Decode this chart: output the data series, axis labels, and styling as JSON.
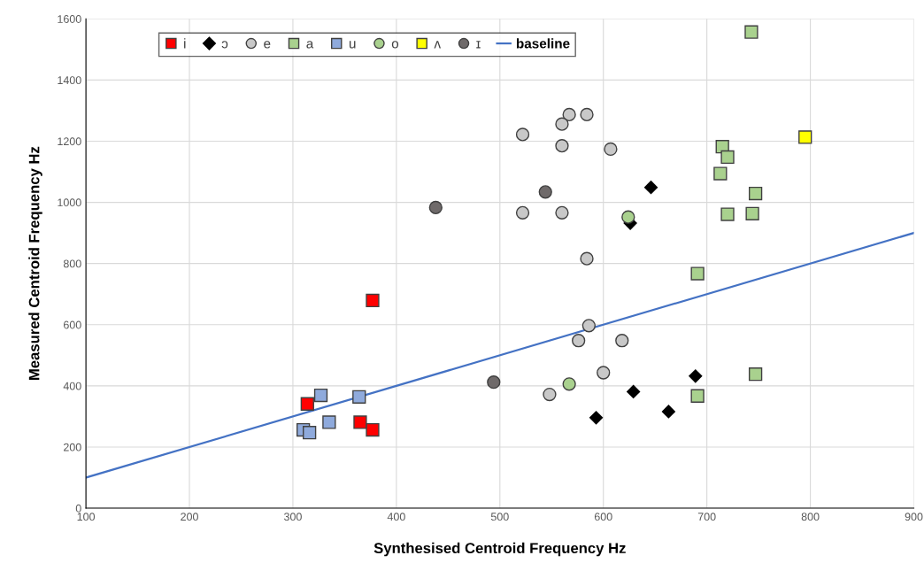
{
  "chart_data": {
    "type": "scatter",
    "xlabel": "Synthesised Centroid Frequency Hz",
    "ylabel": "Measured Centroid Frequency Hz",
    "xlim": [
      100,
      900
    ],
    "ylim": [
      0,
      1600
    ],
    "xticks": [
      100,
      200,
      300,
      400,
      500,
      600,
      700,
      800,
      900
    ],
    "yticks": [
      0,
      200,
      400,
      600,
      800,
      1000,
      1200,
      1400,
      1600
    ],
    "grid": true,
    "legend": "top left",
    "series": [
      {
        "name": "i",
        "color": "#ff0000",
        "marker": "square",
        "x": [
          377,
          314,
          365,
          377
        ],
        "values": [
          679,
          341,
          281,
          256
        ]
      },
      {
        "name": "ɔ",
        "color": "#000000",
        "marker": "diamond",
        "x": [
          593,
          629,
          663,
          689,
          626,
          646
        ],
        "values": [
          296,
          381,
          316,
          432,
          932,
          1049
        ]
      },
      {
        "name": "e",
        "color": "#c8c8c8",
        "marker": "circle",
        "x": [
          567,
          584,
          560,
          522,
          560,
          607,
          522,
          560,
          584,
          586,
          576,
          618,
          600,
          548
        ],
        "values": [
          1287,
          1287,
          1256,
          1222,
          1185,
          1174,
          966,
          966,
          816,
          597,
          548,
          548,
          443,
          372
        ]
      },
      {
        "name": "a",
        "color": "#a9d18e",
        "marker": "square",
        "x": [
          743,
          715,
          720,
          713,
          747,
          720,
          744,
          691,
          747,
          691
        ],
        "values": [
          1557,
          1182,
          1148,
          1094,
          1029,
          961,
          963,
          767,
          438,
          367
        ]
      },
      {
        "name": "u",
        "color": "#8faadc",
        "marker": "square",
        "x": [
          327,
          364,
          335,
          310,
          316
        ],
        "values": [
          369,
          364,
          281,
          256,
          247
        ]
      },
      {
        "name": "o",
        "color": "#a9d18e",
        "marker": "circle",
        "x": [
          624,
          567
        ],
        "values": [
          952,
          406
        ]
      },
      {
        "name": "ʌ",
        "color": "#ffff00",
        "marker": "square",
        "x": [
          795
        ],
        "values": [
          1213
        ]
      },
      {
        "name": "ɪ",
        "color": "#6f6a6a",
        "marker": "circle",
        "x": [
          544,
          438,
          494
        ],
        "values": [
          1034,
          983,
          412
        ]
      },
      {
        "name": "baseline",
        "type": "line",
        "color": "#4472c4",
        "marker": "none",
        "line_style": "solid",
        "x": [
          100,
          900
        ],
        "values": [
          100,
          900
        ]
      }
    ]
  }
}
